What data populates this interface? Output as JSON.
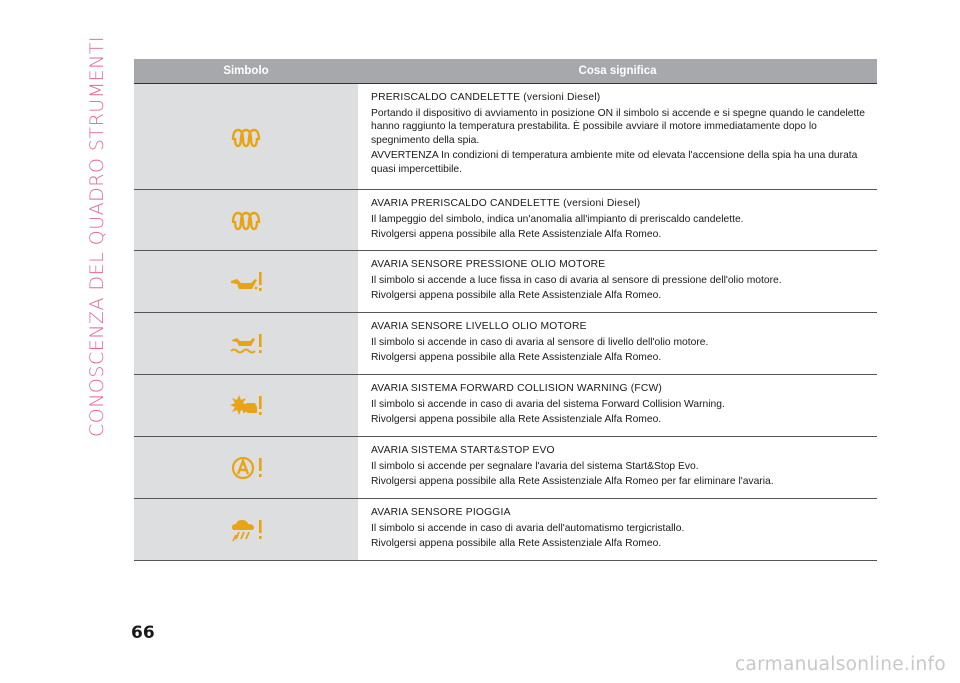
{
  "section_title": "CONOSCENZA DEL QUADRO STRUMENTI",
  "table": {
    "header": {
      "symbol": "Simbolo",
      "meaning": "Cosa significa"
    },
    "rows": [
      {
        "icon": "glow-plug-icon",
        "title": "PRERISCALDO CANDELETTE (versioni Diesel)",
        "paragraphs": [
          "Portando il dispositivo di avviamento in posizione ON il simbolo si accende e si spegne quando le candelette hanno raggiunto la temperatura prestabilita. È possibile avviare il motore immediatamente dopo lo spegnimento della spia.",
          "AVVERTENZA In condizioni di temperatura ambiente mite od elevata l'accensione della spia ha una durata quasi impercettibile."
        ]
      },
      {
        "icon": "glow-plug-icon",
        "title": "AVARIA PRERISCALDO CANDELETTE (versioni Diesel)",
        "paragraphs": [
          "Il lampeggio del simbolo, indica un'anomalia all'impianto di preriscaldo candelette.",
          "Rivolgersi appena possibile alla Rete Assistenziale Alfa Romeo."
        ]
      },
      {
        "icon": "oil-pressure-warning-icon",
        "title": "AVARIA SENSORE PRESSIONE OLIO MOTORE",
        "paragraphs": [
          "Il simbolo si accende a luce fissa in caso di avaria al sensore di pressione dell'olio motore.",
          "Rivolgersi appena possibile alla Rete Assistenziale Alfa Romeo."
        ]
      },
      {
        "icon": "oil-level-warning-icon",
        "title": "AVARIA SENSORE LIVELLO OLIO MOTORE",
        "paragraphs": [
          "Il simbolo si accende in caso di avaria al sensore di livello dell'olio motore.",
          "Rivolgersi appena possibile alla Rete Assistenziale Alfa Romeo."
        ]
      },
      {
        "icon": "fcw-warning-icon",
        "title": "AVARIA SISTEMA FORWARD COLLISION WARNING (FCW)",
        "paragraphs": [
          "Il simbolo si accende in caso di avaria del sistema Forward Collision Warning.",
          "Rivolgersi appena possibile alla Rete Assistenziale Alfa Romeo."
        ]
      },
      {
        "icon": "start-stop-warning-icon",
        "title": "AVARIA SISTEMA START&STOP EVO",
        "paragraphs": [
          "Il simbolo si accende per segnalare l'avaria del sistema Start&Stop Evo.",
          "Rivolgersi appena possibile alla Rete Assistenziale Alfa Romeo per far eliminare l'avaria."
        ]
      },
      {
        "icon": "rain-sensor-warning-icon",
        "title": "AVARIA SENSORE PIOGGIA",
        "paragraphs": [
          "Il simbolo si accende in caso di avaria dell'automatismo tergicristallo.",
          "Rivolgersi appena possibile alla Rete Assistenziale Alfa Romeo."
        ]
      }
    ]
  },
  "page_number": "66",
  "watermark": "carmanualsonline.info",
  "colors": {
    "icon_amber": "#e8a317",
    "section_title": "#e06a8e",
    "header_bg": "#a6a8ab",
    "symbol_cell_bg": "#dcdedf"
  }
}
